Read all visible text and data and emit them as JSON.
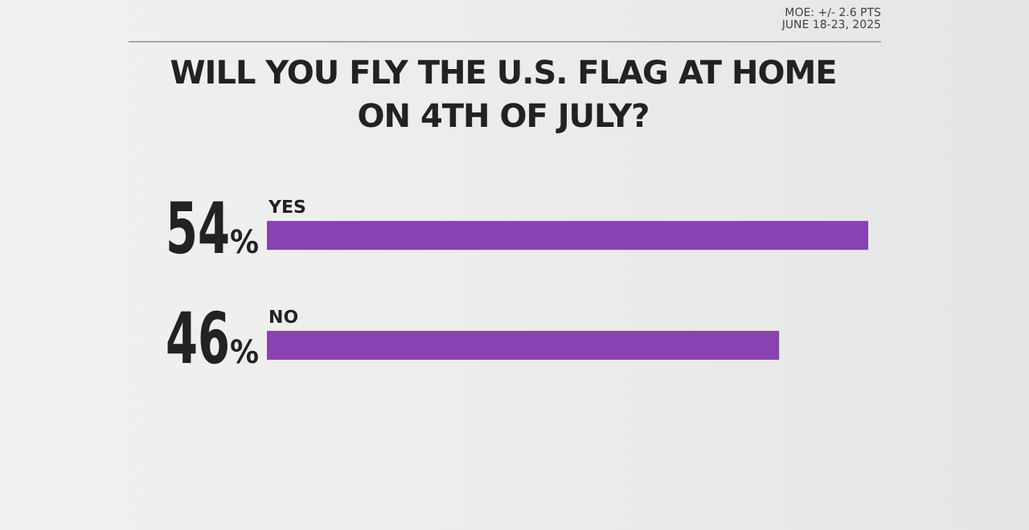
{
  "chart_data": {
    "type": "bar",
    "orientation": "horizontal",
    "title": "WILL YOU FLY THE U.S. FLAG AT HOME ON 4TH OF JULY?",
    "categories": [
      "YES",
      "NO"
    ],
    "values": [
      54,
      46
    ],
    "value_labels": [
      "54%",
      "46%"
    ],
    "color": "#8a42b2",
    "annotations": [
      "MOE: +/- 2.6 PTS",
      "JUNE 18-23, 2025"
    ]
  }
}
